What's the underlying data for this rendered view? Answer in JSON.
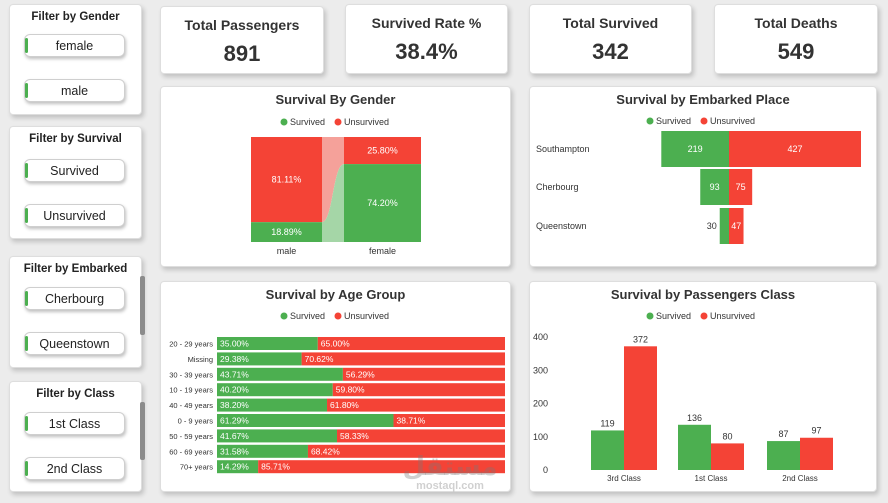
{
  "filters": {
    "gender": {
      "title": "Filter by Gender",
      "items": [
        "female",
        "male"
      ]
    },
    "survival": {
      "title": "Filter by Survival",
      "items": [
        "Survived",
        "Unsurvived"
      ]
    },
    "embarked": {
      "title": "Filter by Embarked",
      "items": [
        "Cherbourg",
        "Queenstown"
      ]
    },
    "class": {
      "title": "Filter by Class",
      "items": [
        "1st Class",
        "2nd Class"
      ]
    }
  },
  "kpis": [
    {
      "title": "Total Passengers",
      "value": "891"
    },
    {
      "title": "Survived Rate %",
      "value": "38.4%"
    },
    {
      "title": "Total Survived",
      "value": "342"
    },
    {
      "title": "Total Deaths",
      "value": "549"
    }
  ],
  "legend": {
    "survived": "Survived",
    "unsurvived": "Unsurvived"
  },
  "colors": {
    "survived": "#4caf50",
    "unsurvived": "#f44336",
    "survived_light": "#a5d6a7",
    "unsurvived_light": "#f5a19a"
  },
  "watermark": {
    "logo_text": "مستقل",
    "site": "mostaql.com"
  },
  "chart_data": [
    {
      "type": "bar",
      "subtype": "100% stacked column",
      "title": "Survival By Gender",
      "categories": [
        "male",
        "female"
      ],
      "series": [
        {
          "name": "Survived",
          "values": [
            18.89,
            74.2
          ],
          "labels": [
            "18.89%",
            "74.20%"
          ]
        },
        {
          "name": "Unsurvived",
          "values": [
            81.11,
            25.8
          ],
          "labels": [
            "81.11%",
            "25.80%"
          ]
        }
      ]
    },
    {
      "type": "bar",
      "subtype": "diverging horizontal",
      "title": "Survival by Embarked Place",
      "categories": [
        "Southampton",
        "Cherbourg",
        "Queenstown"
      ],
      "series": [
        {
          "name": "Survived",
          "values": [
            219,
            93,
            30
          ]
        },
        {
          "name": "Unsurvived",
          "values": [
            427,
            75,
            47
          ]
        }
      ]
    },
    {
      "type": "bar",
      "subtype": "100% stacked horizontal",
      "title": "Survival by Age Group",
      "categories": [
        "20 - 29 years",
        "Missing",
        "30 - 39 years",
        "10 - 19 years",
        "40 - 49 years",
        "0 - 9 years",
        "50 - 59 years",
        "60 - 69 years",
        "70+ years"
      ],
      "series": [
        {
          "name": "Survived",
          "values": [
            35.0,
            29.38,
            43.71,
            40.2,
            38.2,
            61.29,
            41.67,
            31.58,
            14.29
          ],
          "labels": [
            "35.00%",
            "29.38%",
            "43.71%",
            "40.20%",
            "38.20%",
            "61.29%",
            "41.67%",
            "31.58%",
            "14.29%"
          ]
        },
        {
          "name": "Unsurvived",
          "values": [
            65.0,
            70.62,
            56.29,
            59.8,
            61.8,
            38.71,
            58.33,
            68.42,
            85.71
          ],
          "labels": [
            "65.00%",
            "70.62%",
            "56.29%",
            "59.80%",
            "61.80%",
            "38.71%",
            "58.33%",
            "68.42%",
            "85.71%"
          ]
        }
      ]
    },
    {
      "type": "bar",
      "subtype": "clustered column",
      "title": "Survival by Passengers Class",
      "categories": [
        "3rd Class",
        "1st Class",
        "2nd Class"
      ],
      "yticks": [
        "0",
        "100",
        "200",
        "300",
        "400"
      ],
      "ylim": [
        0,
        400
      ],
      "series": [
        {
          "name": "Survived",
          "values": [
            119,
            136,
            87
          ]
        },
        {
          "name": "Unsurvived",
          "values": [
            372,
            80,
            97
          ]
        }
      ]
    }
  ]
}
